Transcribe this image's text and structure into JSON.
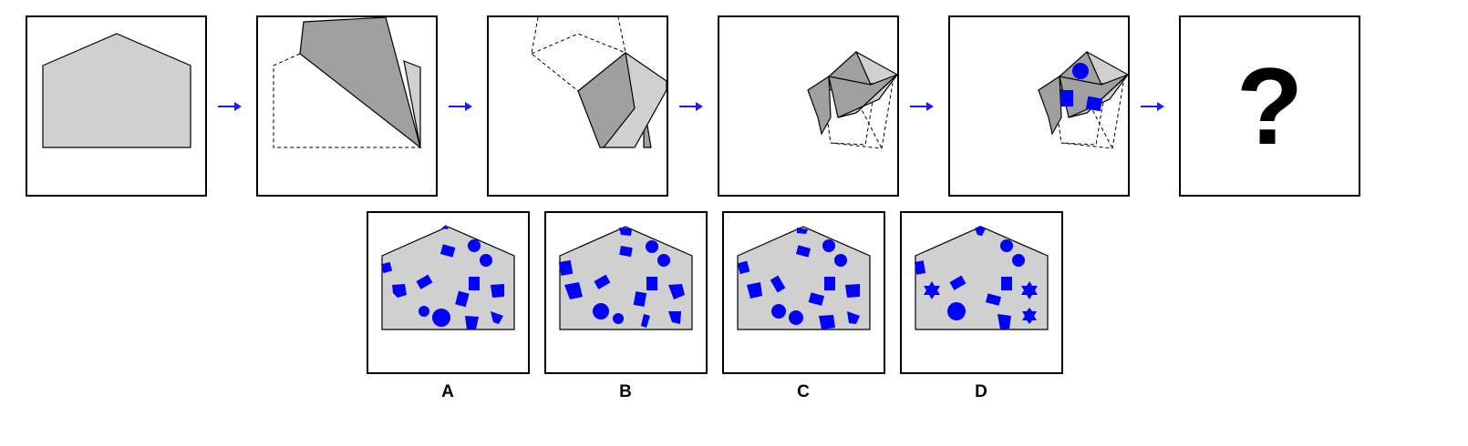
{
  "puzzle": {
    "sequence_steps": 5,
    "question_mark": "?",
    "arrow_color": "#1a1aff",
    "paper_color": "#d0d0d0",
    "folded_color": "#a0a0a0",
    "shape_color": "#0000ff"
  },
  "options": [
    {
      "label": "A"
    },
    {
      "label": "B"
    },
    {
      "label": "C"
    },
    {
      "label": "D"
    }
  ]
}
